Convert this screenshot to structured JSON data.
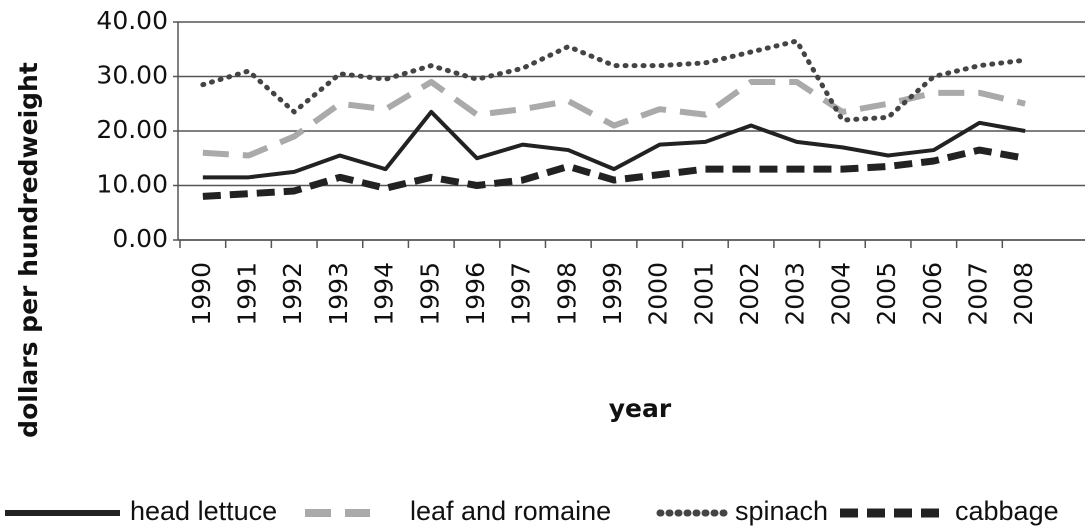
{
  "chart_data": {
    "type": "line",
    "y_label": "dollars per hundredweight",
    "x_label": "year",
    "categories": [
      "1990",
      "1991",
      "1992",
      "1993",
      "1994",
      "1995",
      "1996",
      "1997",
      "1998",
      "1999",
      "2000",
      "2001",
      "2002",
      "2003",
      "2004",
      "2005",
      "2006",
      "2007",
      "2008"
    ],
    "series": [
      {
        "name": "head lettuce",
        "color": "#222222",
        "dash": "solid",
        "values": [
          11.5,
          11.5,
          12.5,
          15.5,
          13,
          23.5,
          15,
          17.5,
          16.5,
          13,
          17.5,
          18,
          21,
          18,
          17,
          15.5,
          16.5,
          21.5,
          20
        ]
      },
      {
        "name": "leaf and romaine",
        "color": "#aaaaaa",
        "dash": "longdash",
        "values": [
          16,
          15.5,
          19,
          25,
          24,
          29,
          23,
          24,
          25.5,
          21,
          24,
          23,
          29,
          29,
          23.5,
          25,
          27,
          27,
          25
        ]
      },
      {
        "name": "spinach",
        "color": "#444444",
        "dash": "dot",
        "values": [
          28.5,
          31,
          23.5,
          30.5,
          29.5,
          32,
          29.5,
          31.5,
          35.5,
          32,
          32,
          32.5,
          34.5,
          36.5,
          22,
          22.5,
          30,
          32,
          33
        ]
      },
      {
        "name": "cabbage",
        "color": "#222222",
        "dash": "dash",
        "values": [
          8,
          8.5,
          9,
          11.5,
          9.5,
          11.5,
          10,
          11,
          13.5,
          11,
          12,
          13,
          13,
          13,
          13,
          13.5,
          14.5,
          16.5,
          15
        ]
      }
    ],
    "ylim": [
      0,
      40
    ],
    "yticks": [
      {
        "value": 0,
        "label": "0.00"
      },
      {
        "value": 10,
        "label": "10.00"
      },
      {
        "value": 20,
        "label": "20.00"
      },
      {
        "value": 30,
        "label": "30.00"
      },
      {
        "value": 40,
        "label": "40.00"
      }
    ],
    "grid": true,
    "legend": "bottom"
  }
}
